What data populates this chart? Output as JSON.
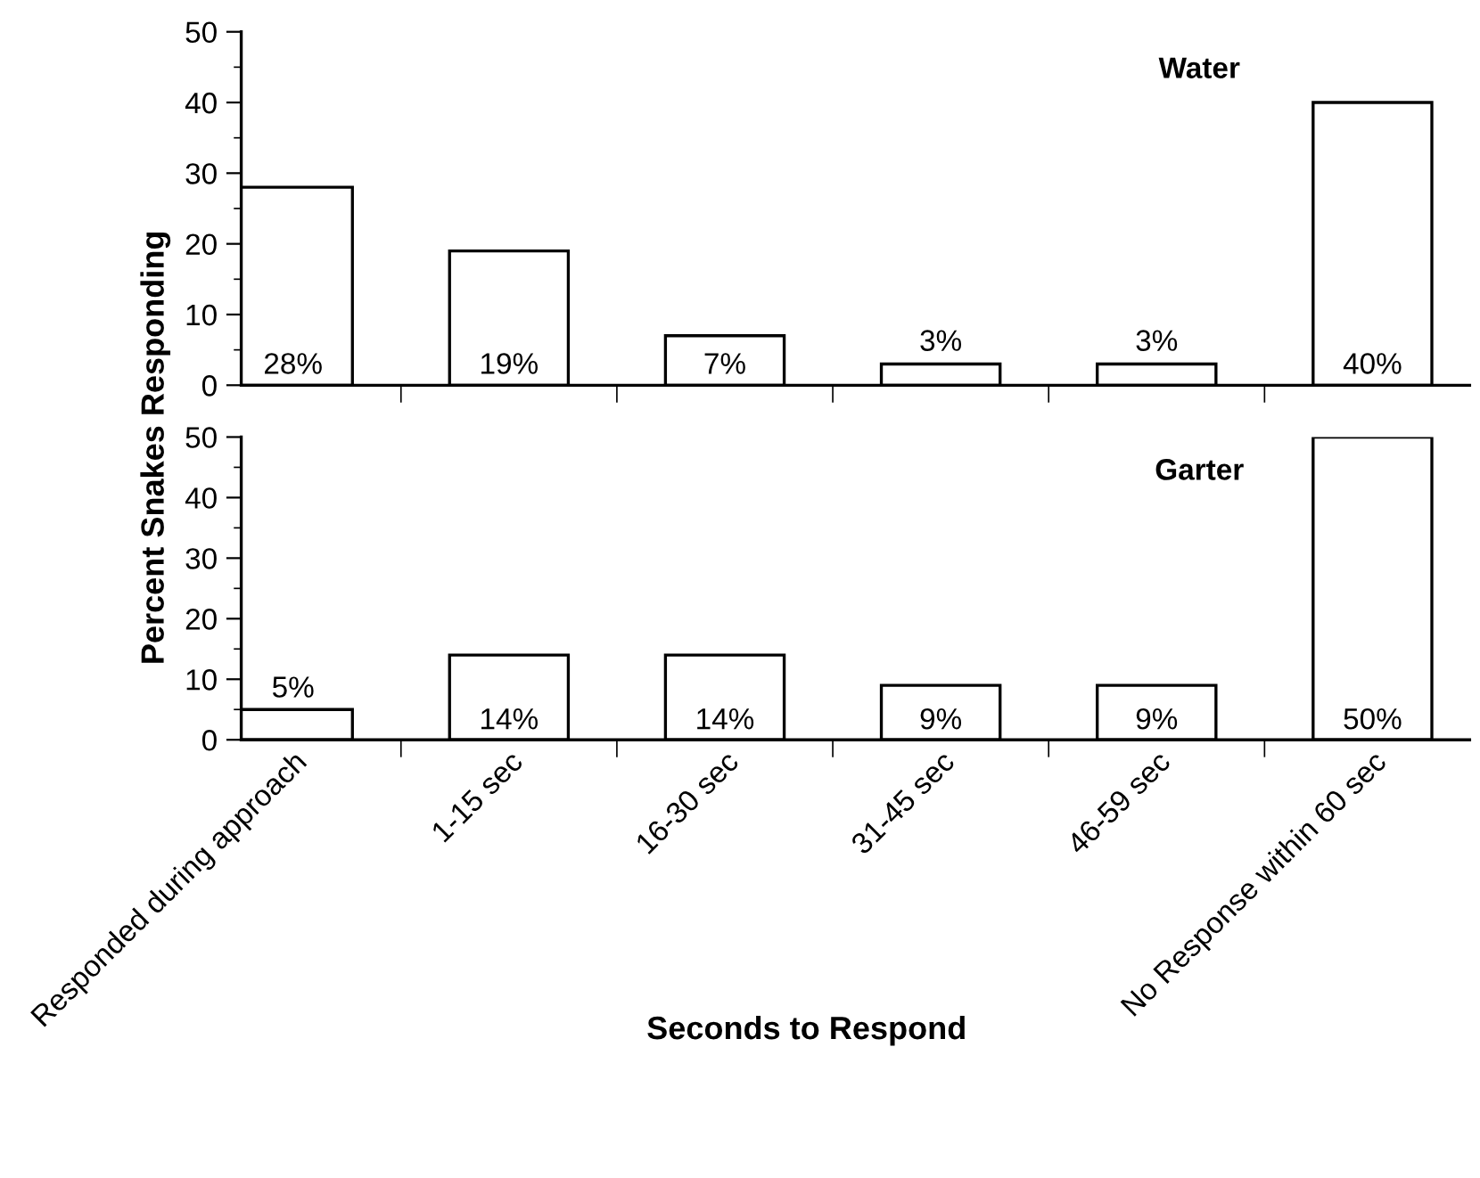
{
  "chart_data": [
    {
      "type": "bar",
      "title": "Water",
      "ylabel": "Percent Snakes Responding",
      "categories": [
        null,
        null,
        null,
        null,
        null,
        null
      ],
      "values": [
        28,
        19,
        7,
        3,
        3,
        40
      ],
      "value_labels": [
        "28%",
        "19%",
        "7%",
        "3%",
        "3%",
        "40%"
      ],
      "color": "#ffffff",
      "ylim": [
        0,
        50
      ],
      "yticks": [
        0,
        10,
        20,
        30,
        40,
        50
      ],
      "tick_labels": "y",
      "grid": false,
      "legend": false
    },
    {
      "type": "bar",
      "title": "Garter",
      "xlabel": "Seconds to Respond",
      "categories": [
        "Responded during approach",
        "1-15 sec",
        "16-30 sec",
        "31-45 sec",
        "46-59 sec",
        "No Response within 60 sec"
      ],
      "values": [
        5,
        14,
        14,
        9,
        9,
        50
      ],
      "value_labels": [
        "5%",
        "14%",
        "14%",
        "9%",
        "9%",
        "50%"
      ],
      "color": "#ffffff",
      "ylim": [
        0,
        50
      ],
      "yticks": [
        0,
        10,
        20,
        30,
        40,
        50
      ],
      "grid": false,
      "legend": false
    }
  ]
}
